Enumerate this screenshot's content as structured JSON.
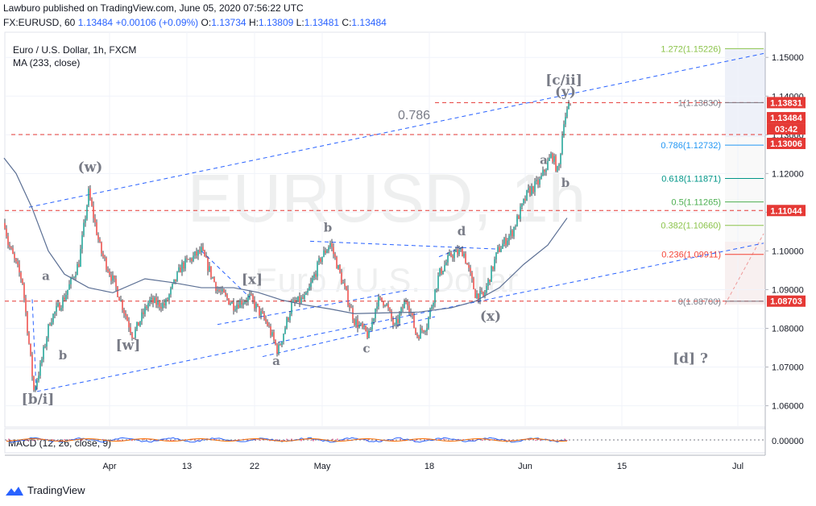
{
  "header": {
    "line1": "Lawburo published on TradingView.com, June 05, 2020 07:56:22 UTC",
    "symbol": "FX:EURUSD, 60",
    "last": "1.13484",
    "change": "+0.00106 (+0.09%)",
    "o_label": "O:",
    "o": "1.13734",
    "h_label": "H:",
    "h": "1.13809",
    "l_label": "L:",
    "l": "1.13481",
    "c_label": "C:",
    "c": "1.13484"
  },
  "legend": {
    "title": "Euro / U.S. Dollar, 1h, FXCM",
    "ma": "MA (233, close)",
    "macd": "MACD (12, 26, close, 9)"
  },
  "watermark": {
    "main": "EURUSD, 1h",
    "sub": "Euro / U.S. Dollar"
  },
  "footer": {
    "brand": "TradingView"
  },
  "colors": {
    "up": "#26a69a",
    "down": "#ef5350",
    "candle": "#131722",
    "channel": "#2962ff",
    "ma": "#5b6f94",
    "hline": "#e53935",
    "wave": "#787b86",
    "fib_line": "#787b86",
    "macd": "#2962ff",
    "signal": "#ff6d00",
    "hist": "#e91e63"
  },
  "chart_data": {
    "type": "candlestick",
    "symbol": "EURUSD",
    "timeframe": "1h",
    "x_ticks": [
      "Apr",
      "13",
      "22",
      "May",
      "18",
      "Jun",
      "15",
      "Jul"
    ],
    "y_ticks": [
      "1.15000",
      "1.14000",
      "1.13000",
      "1.12000",
      "1.11000",
      "1.10000",
      "1.09000",
      "1.08000",
      "1.07000",
      "1.06000"
    ],
    "y_tick_values": [
      1.15,
      1.14,
      1.13,
      1.12,
      1.11,
      1.1,
      1.09,
      1.08,
      1.07,
      1.06
    ],
    "ylim": [
      1.0545,
      1.1565
    ],
    "macd_tick": "0.00000",
    "price_path": [
      [
        0,
        1.115
      ],
      [
        10,
        1.102
      ],
      [
        28,
        1.092
      ],
      [
        42,
        1.064
      ],
      [
        50,
        1.07
      ],
      [
        62,
        1.082
      ],
      [
        80,
        1.088
      ],
      [
        98,
        1.097
      ],
      [
        110,
        1.115
      ],
      [
        125,
        1.1
      ],
      [
        145,
        1.09
      ],
      [
        165,
        1.078
      ],
      [
        185,
        1.087
      ],
      [
        205,
        1.086
      ],
      [
        225,
        1.096
      ],
      [
        250,
        1.1
      ],
      [
        270,
        1.09
      ],
      [
        290,
        1.086
      ],
      [
        310,
        1.088
      ],
      [
        332,
        1.081
      ],
      [
        345,
        1.074
      ],
      [
        362,
        1.086
      ],
      [
        380,
        1.088
      ],
      [
        398,
        1.098
      ],
      [
        410,
        1.102
      ],
      [
        425,
        1.092
      ],
      [
        440,
        1.082
      ],
      [
        458,
        1.078
      ],
      [
        468,
        1.087
      ],
      [
        478,
        1.087
      ],
      [
        490,
        1.08
      ],
      [
        505,
        1.088
      ],
      [
        517,
        1.078
      ],
      [
        530,
        1.081
      ],
      [
        545,
        1.094
      ],
      [
        560,
        1.099
      ],
      [
        575,
        1.1
      ],
      [
        590,
        1.089
      ],
      [
        600,
        1.088
      ],
      [
        618,
        1.1
      ],
      [
        636,
        1.105
      ],
      [
        655,
        1.115
      ],
      [
        670,
        1.118
      ],
      [
        685,
        1.125
      ],
      [
        693,
        1.12
      ],
      [
        700,
        1.134
      ],
      [
        708,
        1.138
      ]
    ],
    "ma_path": [
      [
        5,
        1.124
      ],
      [
        20,
        1.12
      ],
      [
        40,
        1.111
      ],
      [
        60,
        1.1
      ],
      [
        80,
        1.094
      ],
      [
        110,
        1.0905
      ],
      [
        140,
        1.0892
      ],
      [
        180,
        1.0928
      ],
      [
        215,
        1.0918
      ],
      [
        250,
        1.0905
      ],
      [
        290,
        1.0905
      ],
      [
        320,
        1.0893
      ],
      [
        350,
        1.0873
      ],
      [
        380,
        1.086
      ],
      [
        410,
        1.085
      ],
      [
        440,
        1.0838
      ],
      [
        480,
        1.084
      ],
      [
        520,
        1.0842
      ],
      [
        560,
        1.0853
      ],
      [
        590,
        1.087
      ],
      [
        620,
        1.0905
      ],
      [
        650,
        1.0965
      ],
      [
        680,
        1.1015
      ],
      [
        704,
        1.1085
      ]
    ],
    "horizontal_levels": [
      {
        "value": 1.13831,
        "label": "1.13831",
        "color": "#e53935"
      },
      {
        "value": 1.13006,
        "label": "1.13006",
        "color": "#e53935"
      },
      {
        "value": 1.11044,
        "label": "1.11044",
        "color": "#e53935"
      },
      {
        "value": 1.08703,
        "label": "1.08703",
        "color": "#e53935"
      }
    ],
    "price_badges": [
      {
        "value": 1.13831,
        "label": "1.13831",
        "bg": "#e53935"
      },
      {
        "value": 1.13484,
        "label": "1.13484",
        "bg": "#e53935"
      },
      {
        "value": 1.13006,
        "label": "1.13006",
        "bg": "#e53935"
      },
      {
        "value": 1.11044,
        "label": "1.11044",
        "bg": "#e53935"
      },
      {
        "value": 1.08703,
        "label": "1.08703",
        "bg": "#e53935"
      }
    ],
    "countdown": "03:42",
    "fib_levels": [
      {
        "value": 1.15226,
        "label": "1.272(1.15226)",
        "color": "#8bc34a"
      },
      {
        "value": 1.1383,
        "label": "1(1.13830)",
        "color": "#787b86"
      },
      {
        "value": 1.12732,
        "label": "0.786(1.12732)",
        "color": "#2196f3"
      },
      {
        "value": 1.11871,
        "label": "0.618(1.11871)",
        "color": "#009688"
      },
      {
        "value": 1.11265,
        "label": "0.5(1.11265)",
        "color": "#4caf50"
      },
      {
        "value": 1.1066,
        "label": "0.382(1.10660)",
        "color": "#8bc34a"
      },
      {
        "value": 1.09911,
        "label": "0.236(1.09911)",
        "color": "#f44336"
      },
      {
        "value": 1.087,
        "label": "0(1.08700)",
        "color": "#787b86"
      }
    ],
    "channel_label": "0.786",
    "wave_labels": [
      {
        "text": "(w)",
        "bar": 112,
        "price": 1.1205
      },
      {
        "text": "a",
        "bar": 57,
        "price": 1.0925
      },
      {
        "text": "b",
        "bar": 78,
        "price": 1.072
      },
      {
        "text": "[b/i]",
        "bar": 47,
        "price": 1.0605
      },
      {
        "text": "[w]",
        "bar": 159,
        "price": 1.0745
      },
      {
        "text": "[x]",
        "bar": 313,
        "price": 1.0915
      },
      {
        "text": "b",
        "bar": 407,
        "price": 1.105
      },
      {
        "text": "a",
        "bar": 343,
        "price": 1.0705
      },
      {
        "text": "c",
        "bar": 455,
        "price": 1.0738
      },
      {
        "text": "d",
        "bar": 573,
        "price": 1.104
      },
      {
        "text": "(x)",
        "bar": 609,
        "price": 1.082
      },
      {
        "text": "a",
        "bar": 675,
        "price": 1.1225
      },
      {
        "text": "b",
        "bar": 702,
        "price": 1.1165
      },
      {
        "text": "(y)",
        "bar": 702,
        "price": 1.14
      },
      {
        "text": "[c/ii]",
        "bar": 700,
        "price": 1.143
      },
      {
        "text": "[d] ?",
        "bar": 857,
        "price": 1.071
      }
    ]
  }
}
